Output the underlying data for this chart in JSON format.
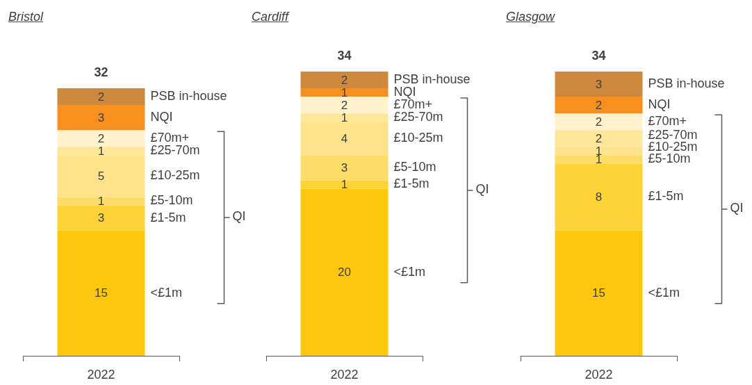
{
  "chart_data": [
    {
      "type": "bar",
      "title": "Bristol",
      "categories": [
        "2022"
      ],
      "stacked": true,
      "data_labels": true,
      "totals": [
        "32"
      ],
      "annotations": [
        "QI"
      ],
      "series": [
        {
          "name": "<£1m",
          "color": "#fdc80b",
          "values": [
            15
          ]
        },
        {
          "name": "£1-5m",
          "color": "#fdd338",
          "values": [
            3
          ]
        },
        {
          "name": "£5-10m",
          "color": "#fedc6a",
          "values": [
            1
          ]
        },
        {
          "name": "£10-25m",
          "color": "#fee38c",
          "values": [
            5
          ]
        },
        {
          "name": "£25-70m",
          "color": "#fee79a",
          "values": [
            1
          ]
        },
        {
          "name": "£70m+",
          "color": "#fff2cc",
          "values": [
            2
          ]
        },
        {
          "name": "NQI",
          "color": "#f7901e",
          "values": [
            3
          ]
        },
        {
          "name": "PSB in-house",
          "color": "#cd8a3f",
          "values": [
            2
          ]
        }
      ]
    },
    {
      "type": "bar",
      "title": "Cardiff",
      "categories": [
        "2022"
      ],
      "stacked": true,
      "data_labels": true,
      "totals": [
        "34"
      ],
      "annotations": [
        "QI"
      ],
      "series": [
        {
          "name": "<£1m",
          "color": "#fdc80b",
          "values": [
            20
          ]
        },
        {
          "name": "£1-5m",
          "color": "#fdd338",
          "values": [
            1
          ]
        },
        {
          "name": "£5-10m",
          "color": "#fedc6a",
          "values": [
            3
          ]
        },
        {
          "name": "£10-25m",
          "color": "#fee38c",
          "values": [
            4
          ]
        },
        {
          "name": "£25-70m",
          "color": "#fee79a",
          "values": [
            1
          ]
        },
        {
          "name": "£70m+",
          "color": "#fff2cc",
          "values": [
            2
          ]
        },
        {
          "name": "NQI",
          "color": "#f7901e",
          "values": [
            1
          ]
        },
        {
          "name": "PSB in-house",
          "color": "#cd8a3f",
          "values": [
            2
          ]
        }
      ]
    },
    {
      "type": "bar",
      "title": "Glasgow",
      "categories": [
        "2022"
      ],
      "stacked": true,
      "data_labels": true,
      "totals": [
        "34"
      ],
      "annotations": [
        "QI"
      ],
      "series": [
        {
          "name": "<£1m",
          "color": "#fdc80b",
          "values": [
            15
          ]
        },
        {
          "name": "£1-5m",
          "color": "#fdd338",
          "values": [
            8
          ]
        },
        {
          "name": "£5-10m",
          "color": "#fedc6a",
          "values": [
            1
          ]
        },
        {
          "name": "£10-25m",
          "color": "#fee38c",
          "values": [
            1
          ]
        },
        {
          "name": "£25-70m",
          "color": "#fee79a",
          "values": [
            2
          ]
        },
        {
          "name": "£70m+",
          "color": "#fff2cc",
          "values": [
            2
          ]
        },
        {
          "name": "NQI",
          "color": "#f7901e",
          "values": [
            2
          ]
        },
        {
          "name": "PSB in-house",
          "color": "#cd8a3f",
          "values": [
            3
          ]
        }
      ]
    }
  ]
}
